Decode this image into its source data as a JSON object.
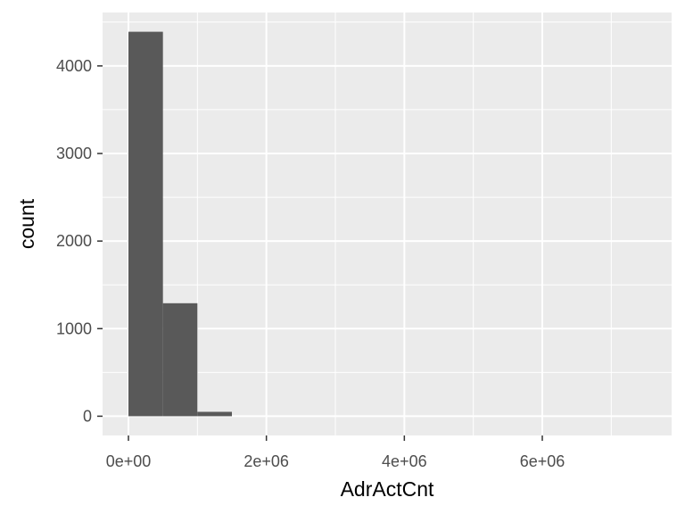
{
  "chart_data": {
    "type": "bar",
    "title": "",
    "xlabel": "AdrActCnt",
    "ylabel": "count",
    "bins": [
      {
        "x0": 0,
        "x1": 500000,
        "count": 4390
      },
      {
        "x0": 500000,
        "x1": 1000000,
        "count": 1290
      },
      {
        "x0": 1000000,
        "x1": 1500000,
        "count": 50
      },
      {
        "x0": 1500000,
        "x1": 2000000,
        "count": 0
      },
      {
        "x0": 2000000,
        "x1": 2500000,
        "count": 0
      },
      {
        "x0": 2500000,
        "x1": 3000000,
        "count": 0
      },
      {
        "x0": 3000000,
        "x1": 3500000,
        "count": 0
      },
      {
        "x0": 3500000,
        "x1": 4000000,
        "count": 0
      },
      {
        "x0": 4000000,
        "x1": 4500000,
        "count": 0
      },
      {
        "x0": 4500000,
        "x1": 5000000,
        "count": 0
      },
      {
        "x0": 5000000,
        "x1": 5500000,
        "count": 0
      },
      {
        "x0": 5500000,
        "x1": 6000000,
        "count": 0
      },
      {
        "x0": 6000000,
        "x1": 6500000,
        "count": 0
      },
      {
        "x0": 6500000,
        "x1": 7000000,
        "count": 0
      },
      {
        "x0": 7000000,
        "x1": 7500000,
        "count": 0
      }
    ],
    "xlim": [
      -375000,
      7875000
    ],
    "ylim": [
      -220,
      4610
    ],
    "xticks": [
      {
        "value": 0,
        "label": "0e+00"
      },
      {
        "value": 2000000,
        "label": "2e+06"
      },
      {
        "value": 4000000,
        "label": "4e+06"
      },
      {
        "value": 6000000,
        "label": "6e+06"
      }
    ],
    "yticks": [
      {
        "value": 0,
        "label": "0"
      },
      {
        "value": 1000,
        "label": "1000"
      },
      {
        "value": 2000,
        "label": "2000"
      },
      {
        "value": 3000,
        "label": "3000"
      },
      {
        "value": 4000,
        "label": "4000"
      }
    ],
    "grid": true,
    "colors": {
      "panel_background": "#ebebeb",
      "grid_major": "#ffffff",
      "bar_fill": "#595959",
      "tick_label": "#4d4d4d",
      "tick_mark": "#333333"
    }
  }
}
